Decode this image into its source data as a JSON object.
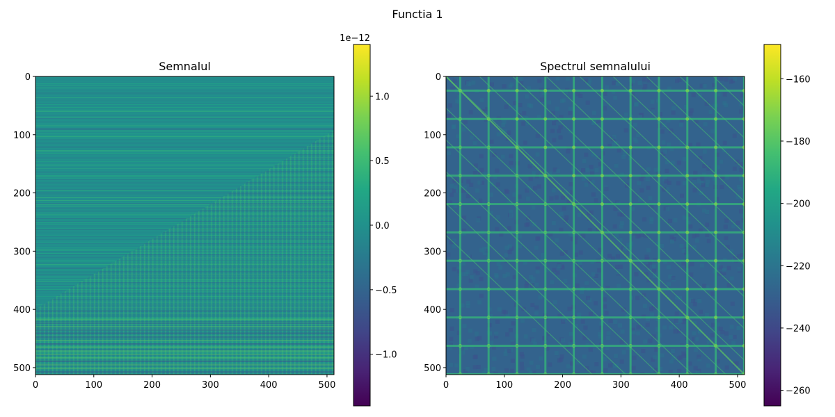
{
  "figure": {
    "suptitle": "Functia 1"
  },
  "chart_data": [
    {
      "type": "heatmap",
      "title": "Semnalul",
      "xlabel": "",
      "ylabel": "",
      "xlim": [
        0,
        512
      ],
      "ylim": [
        512,
        0
      ],
      "x_ticks": [
        0,
        100,
        200,
        300,
        400,
        500
      ],
      "y_ticks": [
        0,
        100,
        200,
        300,
        400,
        500
      ],
      "colormap": "viridis",
      "colorbar": {
        "range": [
          -1.4e-12,
          1.4e-12
        ],
        "ticks": [
          -1.0,
          -0.5,
          0.0,
          0.5,
          1.0
        ],
        "tick_labels": [
          "−1.0",
          "−0.5",
          "0.0",
          "0.5",
          "1.0"
        ],
        "offset_label": "1e−12"
      }
    },
    {
      "type": "heatmap",
      "title": "Spectrul semnalului",
      "xlabel": "",
      "ylabel": "",
      "xlim": [
        0,
        512
      ],
      "ylim": [
        512,
        0
      ],
      "x_ticks": [
        0,
        100,
        200,
        300,
        400,
        500
      ],
      "y_ticks": [
        0,
        100,
        200,
        300,
        400,
        500
      ],
      "colormap": "viridis",
      "colorbar": {
        "range": [
          -265,
          -149
        ],
        "ticks": [
          -260,
          -240,
          -220,
          -200,
          -180,
          -160
        ],
        "tick_labels": [
          "−260",
          "−240",
          "−220",
          "−200",
          "−180",
          "−160"
        ]
      }
    }
  ]
}
